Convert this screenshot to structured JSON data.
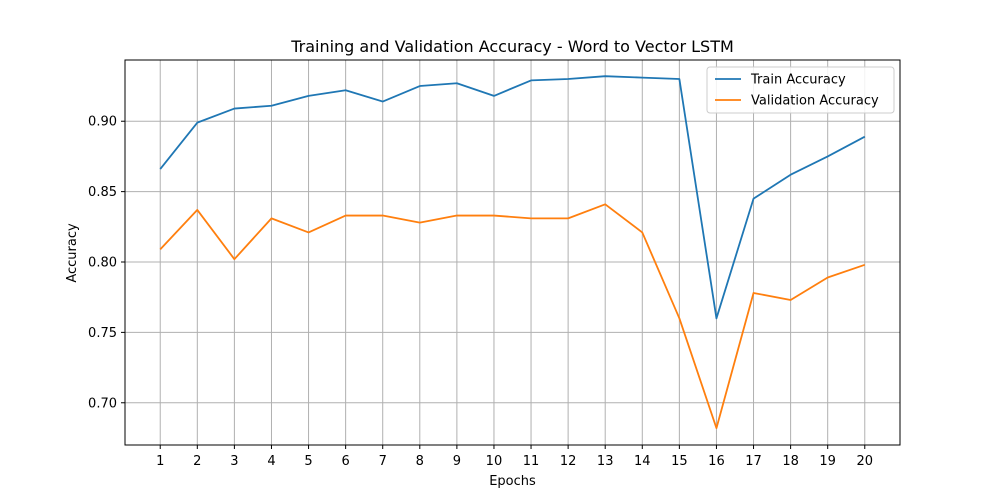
{
  "chart_data": {
    "type": "line",
    "title": "Training and Validation Accuracy - Word to Vector LSTM",
    "xlabel": "Epochs",
    "ylabel": "Accuracy",
    "x": [
      1,
      2,
      3,
      4,
      5,
      6,
      7,
      8,
      9,
      10,
      11,
      12,
      13,
      14,
      15,
      16,
      17,
      18,
      19,
      20
    ],
    "x_tick_labels": [
      "1",
      "2",
      "3",
      "4",
      "5",
      "6",
      "7",
      "8",
      "9",
      "10",
      "11",
      "12",
      "13",
      "14",
      "15",
      "16",
      "17",
      "18",
      "19",
      "20"
    ],
    "y_ticks": [
      0.7,
      0.75,
      0.8,
      0.85,
      0.9
    ],
    "y_tick_labels": [
      "0.70",
      "0.75",
      "0.80",
      "0.85",
      "0.90"
    ],
    "xlim": [
      0.05,
      20.95
    ],
    "ylim": [
      0.67,
      0.9435
    ],
    "grid": true,
    "legend_position": "top-right",
    "series": [
      {
        "name": "Train Accuracy",
        "color": "#1f77b4",
        "values": [
          0.866,
          0.899,
          0.909,
          0.911,
          0.918,
          0.922,
          0.914,
          0.925,
          0.927,
          0.918,
          0.929,
          0.93,
          0.932,
          0.931,
          0.93,
          0.76,
          0.845,
          0.862,
          0.875,
          0.889
        ]
      },
      {
        "name": "Validation Accuracy",
        "color": "#ff7f0e",
        "values": [
          0.809,
          0.837,
          0.802,
          0.831,
          0.821,
          0.833,
          0.833,
          0.828,
          0.833,
          0.833,
          0.831,
          0.831,
          0.841,
          0.821,
          0.76,
          0.682,
          0.778,
          0.773,
          0.789,
          0.798
        ]
      }
    ]
  }
}
